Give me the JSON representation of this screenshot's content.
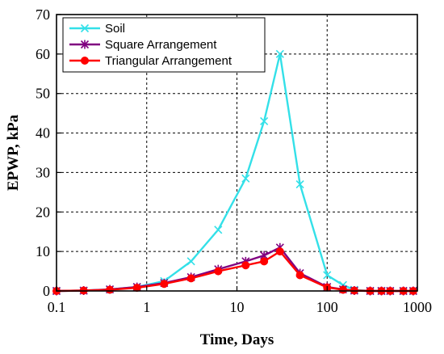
{
  "chart_data": {
    "type": "line",
    "xlabel": "Time, Days",
    "ylabel": "EPWP, kPa",
    "xscale": "log",
    "xlim": [
      0.1,
      1000
    ],
    "ylim": [
      0,
      70
    ],
    "x_ticks": [
      "0.1",
      "1",
      "10",
      "100",
      "1000"
    ],
    "y_ticks": [
      "0",
      "10",
      "20",
      "30",
      "40",
      "50",
      "60",
      "70"
    ],
    "grid": true,
    "legend_position": "top-left",
    "series": [
      {
        "name": "Soil",
        "color": "#33e0e8",
        "marker": "x",
        "x": [
          0.1,
          0.2,
          0.39,
          0.78,
          1.56,
          3.1,
          6.2,
          12.5,
          20,
          30,
          50,
          100,
          150,
          200,
          300,
          400,
          500,
          700,
          900
        ],
        "y": [
          0,
          0.1,
          0.4,
          1.0,
          2.5,
          7.5,
          15.5,
          28.5,
          43,
          60,
          27,
          4,
          1.5,
          0.3,
          0,
          0,
          0,
          0,
          0
        ]
      },
      {
        "name": "Square Arrangement",
        "color": "#800080",
        "marker": "asterisk",
        "x": [
          0.1,
          0.2,
          0.39,
          0.78,
          1.56,
          3.1,
          6.2,
          12.5,
          20,
          30,
          50,
          100,
          150,
          200,
          300,
          400,
          500,
          700,
          900
        ],
        "y": [
          0,
          0.1,
          0.4,
          1.0,
          2.0,
          3.5,
          5.5,
          7.5,
          9,
          11,
          4.5,
          1.0,
          0.4,
          0.1,
          0,
          0,
          0,
          0,
          0
        ]
      },
      {
        "name": "Triangular Arrangement",
        "color": "#ff0000",
        "marker": "circle",
        "x": [
          0.1,
          0.2,
          0.39,
          0.78,
          1.56,
          3.1,
          6.2,
          12.5,
          20,
          30,
          50,
          100,
          150,
          200,
          300,
          400,
          500,
          700,
          900
        ],
        "y": [
          0,
          0.1,
          0.3,
          0.8,
          1.8,
          3.2,
          5.0,
          6.5,
          7.5,
          10,
          4.0,
          0.9,
          0.3,
          0.1,
          0,
          0,
          0,
          0,
          0
        ]
      }
    ]
  }
}
